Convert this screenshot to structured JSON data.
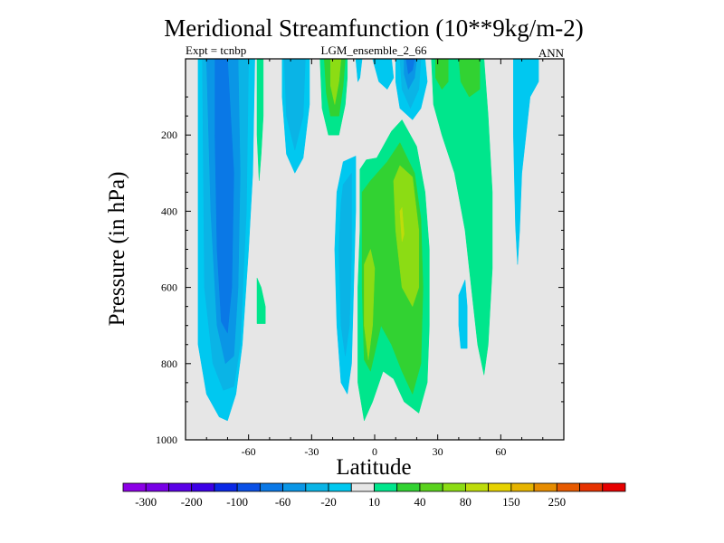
{
  "chart_data": {
    "type": "contour",
    "title": "Meridional Streamfunction (10**9kg/m-2)",
    "left_label": "Expt = tcnbp",
    "center_label": "LGM_ensemble_2_66",
    "right_label": "ANN",
    "xlabel": "Latitude",
    "ylabel": "Pressure (in hPa)",
    "xlim": [
      -90,
      90
    ],
    "ylim": [
      1000,
      0
    ],
    "x_ticks": [
      {
        "value": -60,
        "label": "-60"
      },
      {
        "value": -30,
        "label": "-30"
      },
      {
        "value": 0,
        "label": "0"
      },
      {
        "value": 30,
        "label": "30"
      },
      {
        "value": 60,
        "label": "60"
      }
    ],
    "y_ticks": [
      {
        "value": 200,
        "label": "200"
      },
      {
        "value": 400,
        "label": "400"
      },
      {
        "value": 600,
        "label": "600"
      },
      {
        "value": 800,
        "label": "800"
      },
      {
        "value": 1000,
        "label": "1000"
      }
    ],
    "background_color": "#e6e6e6",
    "colorbar": {
      "colors": [
        "#8c00e6",
        "#7800e6",
        "#5a00e6",
        "#3c00e6",
        "#0a28e6",
        "#0a50e6",
        "#0a78e6",
        "#0a96e6",
        "#0ab4e6",
        "#00c8f0",
        "#e6e6e6",
        "#00e68c",
        "#32d232",
        "#5ad21e",
        "#8cdc14",
        "#bedc0a",
        "#e6d200",
        "#e6b400",
        "#e68c00",
        "#e65a00",
        "#e63200",
        "#e60000"
      ],
      "labels": [
        "-300",
        "-200",
        "-100",
        "-60",
        "-20",
        "10",
        "40",
        "80",
        "150",
        "250"
      ]
    },
    "regions": [
      {
        "name": "south-hemisphere-cell-outer",
        "value": -20,
        "color": "#00c8f0",
        "points": [
          [
            -84,
            0
          ],
          [
            -57,
            0
          ],
          [
            -58,
            300
          ],
          [
            -60,
            500
          ],
          [
            -63,
            750
          ],
          [
            -66,
            880
          ],
          [
            -70,
            950
          ],
          [
            -74,
            940
          ],
          [
            -80,
            880
          ],
          [
            -84,
            750
          ]
        ]
      },
      {
        "name": "south-hemisphere-cell-mid",
        "value": -40,
        "color": "#0ab4e6",
        "points": [
          [
            -82,
            0
          ],
          [
            -60,
            0
          ],
          [
            -61,
            400
          ],
          [
            -64,
            750
          ],
          [
            -67,
            860
          ],
          [
            -72,
            870
          ],
          [
            -77,
            800
          ],
          [
            -81,
            600
          ]
        ]
      },
      {
        "name": "south-hemisphere-cell-inner",
        "value": -60,
        "color": "#0a96e6",
        "points": [
          [
            -80,
            0
          ],
          [
            -65,
            0
          ],
          [
            -64,
            300
          ],
          [
            -65,
            600
          ],
          [
            -67,
            780
          ],
          [
            -71,
            800
          ],
          [
            -75,
            700
          ],
          [
            -78,
            400
          ]
        ]
      },
      {
        "name": "south-hemisphere-cell-core",
        "value": -100,
        "color": "#0a78e6",
        "points": [
          [
            -76,
            0
          ],
          [
            -70,
            0
          ],
          [
            -67,
            300
          ],
          [
            -68,
            600
          ],
          [
            -70,
            720
          ],
          [
            -73,
            690
          ],
          [
            -75,
            500
          ],
          [
            -76,
            200
          ]
        ]
      },
      {
        "name": "south-mid-lat-positive",
        "value": 10,
        "color": "#00e68c",
        "points": [
          [
            -56,
            0
          ],
          [
            -53,
            0
          ],
          [
            -53,
            150
          ],
          [
            -54,
            250
          ],
          [
            -55,
            320
          ],
          [
            -56,
            200
          ]
        ]
      },
      {
        "name": "south-small-positive-blob",
        "value": 10,
        "color": "#00e68c",
        "points": [
          [
            -56,
            575
          ],
          [
            -54,
            600
          ],
          [
            -52,
            650
          ],
          [
            -52,
            695
          ],
          [
            -56,
            695
          ]
        ]
      },
      {
        "name": "south-subtropical-negative",
        "value": -20,
        "color": "#00c8f0",
        "points": [
          [
            -44,
            0
          ],
          [
            -31,
            0
          ],
          [
            -31,
            120
          ],
          [
            -34,
            260
          ],
          [
            -38,
            300
          ],
          [
            -42,
            250
          ],
          [
            -44,
            100
          ]
        ]
      },
      {
        "name": "south-subtropical-negative-inner",
        "value": -40,
        "color": "#0ab4e6",
        "points": [
          [
            -43,
            0
          ],
          [
            -33,
            0
          ],
          [
            -34,
            150
          ],
          [
            -38,
            240
          ],
          [
            -42,
            150
          ]
        ]
      },
      {
        "name": "tropical-upper-positive",
        "value": 10,
        "color": "#00e68c",
        "points": [
          [
            -26,
            0
          ],
          [
            -13,
            0
          ],
          [
            -13,
            50
          ],
          [
            -14,
            120
          ],
          [
            -17,
            200
          ],
          [
            -22,
            200
          ],
          [
            -25,
            130
          ]
        ]
      },
      {
        "name": "tropical-upper-positive-mid",
        "value": 40,
        "color": "#32d232",
        "points": [
          [
            -24,
            0
          ],
          [
            -14,
            0
          ],
          [
            -15,
            70
          ],
          [
            -17,
            150
          ],
          [
            -21,
            150
          ],
          [
            -23,
            90
          ]
        ]
      },
      {
        "name": "tropical-upper-positive-inner",
        "value": 80,
        "color": "#8cdc14",
        "points": [
          [
            -21,
            0
          ],
          [
            -16,
            0
          ],
          [
            -17,
            60
          ],
          [
            -19,
            120
          ],
          [
            -21,
            70
          ]
        ]
      },
      {
        "name": "tropical-upper-negative-small",
        "value": -20,
        "color": "#00c8f0",
        "points": [
          [
            -9,
            0
          ],
          [
            -6,
            0
          ],
          [
            -7,
            50
          ],
          [
            -8,
            60
          ]
        ]
      },
      {
        "name": "equatorial-upper-negative",
        "value": -20,
        "color": "#00c8f0",
        "points": [
          [
            -1,
            0
          ],
          [
            8,
            0
          ],
          [
            9,
            50
          ],
          [
            6,
            80
          ],
          [
            2,
            60
          ]
        ]
      },
      {
        "name": "north-tropical-upper-negative",
        "value": -20,
        "color": "#00c8f0",
        "points": [
          [
            10,
            0
          ],
          [
            24,
            0
          ],
          [
            25,
            60
          ],
          [
            22,
            130
          ],
          [
            18,
            160
          ],
          [
            12,
            130
          ],
          [
            10,
            60
          ]
        ]
      },
      {
        "name": "north-tropical-upper-negative-mid",
        "value": -40,
        "color": "#0ab4e6",
        "points": [
          [
            12,
            0
          ],
          [
            22,
            0
          ],
          [
            21,
            80
          ],
          [
            17,
            130
          ],
          [
            13,
            80
          ]
        ]
      },
      {
        "name": "north-tropical-upper-negative-inner",
        "value": -60,
        "color": "#0a96e6",
        "points": [
          [
            14,
            0
          ],
          [
            20,
            0
          ],
          [
            19,
            50
          ],
          [
            16,
            80
          ],
          [
            14,
            40
          ]
        ]
      },
      {
        "name": "north-tropical-upper-negative-core",
        "value": -100,
        "color": "#0a78e6",
        "points": [
          [
            15,
            0
          ],
          [
            19,
            0
          ],
          [
            18,
            30
          ],
          [
            16,
            40
          ]
        ]
      },
      {
        "name": "north-mid-lat-positive",
        "value": 10,
        "color": "#00e68c",
        "points": [
          [
            27,
            0
          ],
          [
            52,
            0
          ],
          [
            54,
            150
          ],
          [
            56,
            350
          ],
          [
            56,
            550
          ],
          [
            54,
            750
          ],
          [
            52,
            830
          ],
          [
            49,
            750
          ],
          [
            46,
            600
          ],
          [
            43,
            450
          ],
          [
            38,
            300
          ],
          [
            32,
            200
          ],
          [
            28,
            120
          ]
        ]
      },
      {
        "name": "north-mid-lat-positive-inner",
        "value": 40,
        "color": "#32d232",
        "points": [
          [
            29,
            0
          ],
          [
            35,
            0
          ],
          [
            35,
            60
          ],
          [
            32,
            80
          ],
          [
            29,
            50
          ]
        ]
      },
      {
        "name": "north-mid-lat-positive-inner-2",
        "value": 40,
        "color": "#32d232",
        "points": [
          [
            40,
            0
          ],
          [
            50,
            0
          ],
          [
            50,
            80
          ],
          [
            45,
            100
          ],
          [
            41,
            60
          ]
        ]
      },
      {
        "name": "north-mid-lat-negative-strip",
        "value": -20,
        "color": "#00c8f0",
        "points": [
          [
            40,
            620
          ],
          [
            43,
            580
          ],
          [
            44,
            650
          ],
          [
            44,
            760
          ],
          [
            41,
            760
          ],
          [
            40,
            700
          ]
        ]
      },
      {
        "name": "north-polar-negative",
        "value": -20,
        "color": "#00c8f0",
        "points": [
          [
            66,
            0
          ],
          [
            78,
            0
          ],
          [
            78,
            60
          ],
          [
            74,
            100
          ],
          [
            72,
            200
          ],
          [
            70,
            300
          ],
          [
            69,
            450
          ],
          [
            68,
            540
          ],
          [
            67,
            440
          ],
          [
            66,
            200
          ]
        ]
      },
      {
        "name": "tropical-lower-negative",
        "value": -20,
        "color": "#00c8f0",
        "points": [
          [
            -15,
            270
          ],
          [
            -9,
            255
          ],
          [
            -9,
            400
          ],
          [
            -10,
            600
          ],
          [
            -11,
            800
          ],
          [
            -13,
            880
          ],
          [
            -16,
            850
          ],
          [
            -18,
            700
          ],
          [
            -19,
            500
          ],
          [
            -18,
            350
          ]
        ]
      },
      {
        "name": "tropical-lower-negative-inner",
        "value": -40,
        "color": "#0ab4e6",
        "points": [
          [
            -15,
            330
          ],
          [
            -11,
            300
          ],
          [
            -11,
            500
          ],
          [
            -12,
            700
          ],
          [
            -14,
            780
          ],
          [
            -16,
            700
          ],
          [
            -17,
            500
          ],
          [
            -16,
            380
          ]
        ]
      },
      {
        "name": "tropical-lower-positive",
        "value": 10,
        "color": "#00e68c",
        "points": [
          [
            -7,
            290
          ],
          [
            -4,
            265
          ],
          [
            1,
            260
          ],
          [
            8,
            190
          ],
          [
            13,
            160
          ],
          [
            20,
            230
          ],
          [
            24,
            350
          ],
          [
            26,
            500
          ],
          [
            26,
            700
          ],
          [
            25,
            850
          ],
          [
            21,
            930
          ],
          [
            14,
            900
          ],
          [
            9,
            840
          ],
          [
            4,
            820
          ],
          [
            -1,
            900
          ],
          [
            -5,
            950
          ],
          [
            -8,
            850
          ],
          [
            -8,
            600
          ],
          [
            -7,
            450
          ]
        ]
      },
      {
        "name": "tropical-lower-positive-mid",
        "value": 40,
        "color": "#32d232",
        "points": [
          [
            -6,
            350
          ],
          [
            -2,
            320
          ],
          [
            6,
            270
          ],
          [
            12,
            220
          ],
          [
            19,
            300
          ],
          [
            22,
            420
          ],
          [
            23,
            600
          ],
          [
            22,
            800
          ],
          [
            18,
            880
          ],
          [
            13,
            820
          ],
          [
            8,
            750
          ],
          [
            3,
            700
          ],
          [
            -2,
            820
          ],
          [
            -5,
            790
          ],
          [
            -6,
            600
          ]
        ]
      },
      {
        "name": "tropical-lower-positive-inner",
        "value": 80,
        "color": "#8cdc14",
        "points": [
          [
            -5,
            540
          ],
          [
            -2,
            500
          ],
          [
            0,
            550
          ],
          [
            -1,
            700
          ],
          [
            -3,
            790
          ],
          [
            -5,
            700
          ]
        ]
      },
      {
        "name": "tropical-lower-positive-inner-2",
        "value": 80,
        "color": "#8cdc14",
        "points": [
          [
            9,
            320
          ],
          [
            12,
            280
          ],
          [
            18,
            310
          ],
          [
            21,
            450
          ],
          [
            21,
            600
          ],
          [
            18,
            650
          ],
          [
            13,
            600
          ],
          [
            10,
            450
          ]
        ]
      },
      {
        "name": "tropical-lower-positive-core",
        "value": 150,
        "color": "#bedc0a",
        "points": [
          [
            12,
            400
          ],
          [
            13,
            390
          ],
          [
            14,
            460
          ],
          [
            13,
            480
          ]
        ]
      }
    ]
  }
}
